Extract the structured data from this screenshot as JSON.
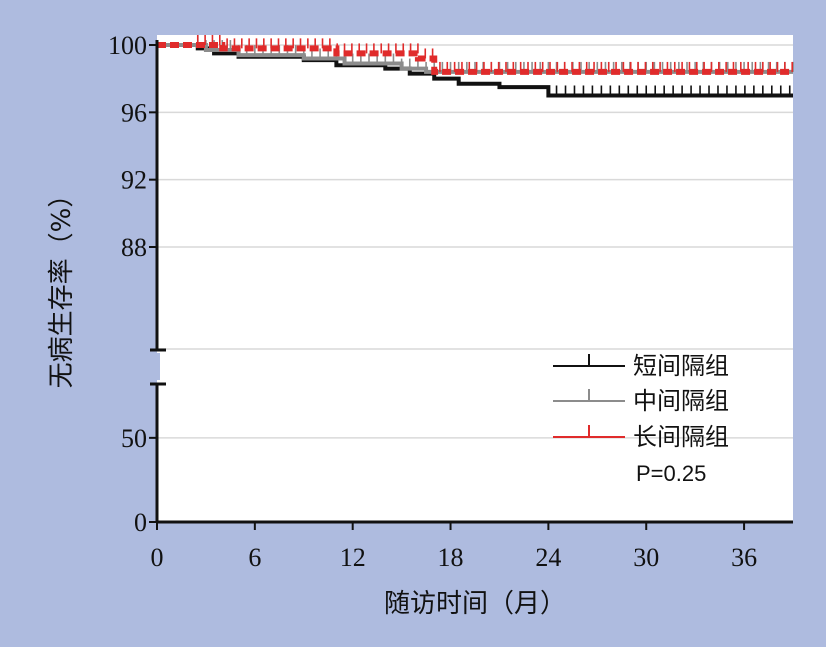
{
  "chart_data": {
    "type": "line",
    "xlabel": "随访时间（月）",
    "ylabel": "无病生存率（%）",
    "x_ticks": [
      0,
      6,
      12,
      18,
      24,
      30,
      36
    ],
    "xlim": [
      0,
      39
    ],
    "y_ticks_upper": [
      88,
      92,
      96,
      100
    ],
    "y_ticks_lower": [
      0,
      50
    ],
    "ylim_upper": [
      82,
      100
    ],
    "ylim_lower": [
      0,
      82
    ],
    "grid": true,
    "legend_position": "bottom-right",
    "annotation": "P=0.25",
    "series": [
      {
        "name": "短间隔组",
        "color": "#111111",
        "points": [
          [
            0,
            100
          ],
          [
            2.5,
            99.8
          ],
          [
            3.5,
            99.5
          ],
          [
            5,
            99.3
          ],
          [
            9,
            99.1
          ],
          [
            11,
            98.8
          ],
          [
            14,
            98.6
          ],
          [
            15.5,
            98.3
          ],
          [
            17,
            98.0
          ],
          [
            18.5,
            97.7
          ],
          [
            21,
            97.5
          ],
          [
            24,
            97.0
          ],
          [
            39,
            97.0
          ]
        ],
        "censor_from": 24.5,
        "censor_to": 39,
        "censor_step": 0.55
      },
      {
        "name": "中间隔组",
        "color": "#8c8c8c",
        "points": [
          [
            0,
            100
          ],
          [
            3,
            99.7
          ],
          [
            5,
            99.4
          ],
          [
            9,
            99.2
          ],
          [
            11.5,
            98.9
          ],
          [
            15,
            98.6
          ],
          [
            16.5,
            98.4
          ],
          [
            39,
            98.4
          ]
        ],
        "censor_from": 2.5,
        "censor_to": 39,
        "censor_step": 0.5
      },
      {
        "name": "长间隔组",
        "color": "#e02b2b",
        "points": [
          [
            0,
            100
          ],
          [
            4,
            99.8
          ],
          [
            11,
            99.5
          ],
          [
            16,
            99.2
          ],
          [
            17,
            98.4
          ],
          [
            39,
            98.4
          ]
        ],
        "censor_from": 2.5,
        "censor_to": 39,
        "censor_step": 0.45
      }
    ]
  }
}
